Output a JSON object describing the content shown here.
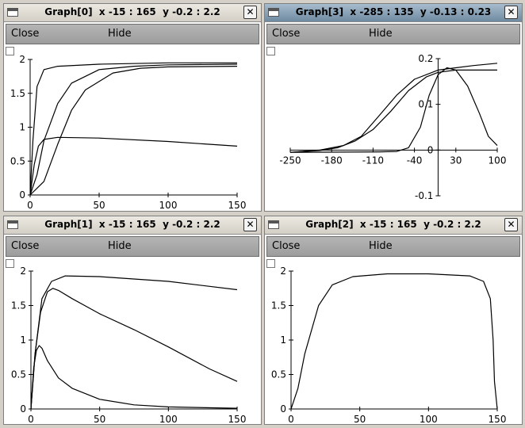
{
  "windows": [
    {
      "title": "Graph[0]  x -15 : 165  y -0.2 : 2.2",
      "active": false,
      "close_label": "Close",
      "hide_label": "Hide",
      "chart_data": {
        "type": "line",
        "xlim": [
          0,
          150
        ],
        "ylim": [
          0,
          2
        ],
        "x_ticks": [
          0,
          50,
          100,
          150
        ],
        "y_ticks": [
          0,
          0.5,
          1,
          1.5,
          2
        ],
        "series": [
          {
            "points": [
              [
                0,
                0
              ],
              [
                2,
                0.8
              ],
              [
                5,
                1.6
              ],
              [
                10,
                1.85
              ],
              [
                20,
                1.9
              ],
              [
                50,
                1.93
              ],
              [
                100,
                1.95
              ],
              [
                150,
                1.95
              ]
            ]
          },
          {
            "points": [
              [
                0,
                0
              ],
              [
                5,
                0.3
              ],
              [
                10,
                0.8
              ],
              [
                20,
                1.35
              ],
              [
                30,
                1.65
              ],
              [
                50,
                1.85
              ],
              [
                75,
                1.9
              ],
              [
                100,
                1.92
              ],
              [
                150,
                1.93
              ]
            ]
          },
          {
            "points": [
              [
                0,
                0
              ],
              [
                10,
                0.2
              ],
              [
                20,
                0.75
              ],
              [
                30,
                1.25
              ],
              [
                40,
                1.55
              ],
              [
                60,
                1.8
              ],
              [
                80,
                1.87
              ],
              [
                100,
                1.89
              ],
              [
                150,
                1.9
              ]
            ]
          },
          {
            "points": [
              [
                0,
                0
              ],
              [
                3,
                0.45
              ],
              [
                6,
                0.72
              ],
              [
                10,
                0.82
              ],
              [
                20,
                0.85
              ],
              [
                50,
                0.84
              ],
              [
                100,
                0.79
              ],
              [
                150,
                0.72
              ]
            ]
          }
        ]
      }
    },
    {
      "title": "Graph[3]  x -285 : 135  y -0.13 : 0.23",
      "active": true,
      "close_label": "Close",
      "hide_label": "Hide",
      "chart_data": {
        "type": "line",
        "xlim": [
          -250,
          100
        ],
        "ylim": [
          -0.1,
          0.2
        ],
        "x_ticks": [
          -250,
          -180,
          -110,
          -40,
          30,
          100
        ],
        "y_ticks": [
          -0.1,
          0,
          0.1,
          0.2
        ],
        "series": [
          {
            "points": [
              [
                -250,
                -0.005
              ],
              [
                -200,
                0
              ],
              [
                -160,
                0.01
              ],
              [
                -130,
                0.03
              ],
              [
                -100,
                0.075
              ],
              [
                -70,
                0.12
              ],
              [
                -40,
                0.155
              ],
              [
                -10,
                0.17
              ],
              [
                0,
                0.175
              ],
              [
                30,
                0.18
              ],
              [
                60,
                0.185
              ],
              [
                100,
                0.19
              ]
            ]
          },
          {
            "points": [
              [
                -250,
                -0.005
              ],
              [
                -200,
                -0.001
              ],
              [
                -170,
                0.005
              ],
              [
                -140,
                0.02
              ],
              [
                -110,
                0.045
              ],
              [
                -80,
                0.085
              ],
              [
                -50,
                0.13
              ],
              [
                -20,
                0.16
              ],
              [
                0,
                0.17
              ],
              [
                30,
                0.175
              ],
              [
                60,
                0.175
              ],
              [
                100,
                0.175
              ]
            ]
          },
          {
            "points": [
              [
                -250,
                -0.005
              ],
              [
                -100,
                -0.004
              ],
              [
                -70,
                -0.003
              ],
              [
                -50,
                0.005
              ],
              [
                -30,
                0.05
              ],
              [
                -15,
                0.12
              ],
              [
                0,
                0.165
              ],
              [
                15,
                0.18
              ],
              [
                30,
                0.175
              ],
              [
                50,
                0.14
              ],
              [
                70,
                0.08
              ],
              [
                85,
                0.03
              ],
              [
                100,
                0.01
              ]
            ]
          }
        ]
      }
    },
    {
      "title": "Graph[1]  x -15 : 165  y -0.2 : 2.2",
      "active": false,
      "close_label": "Close",
      "hide_label": "Hide",
      "chart_data": {
        "type": "line",
        "xlim": [
          0,
          150
        ],
        "ylim": [
          0,
          2
        ],
        "x_ticks": [
          0,
          50,
          100,
          150
        ],
        "y_ticks": [
          0,
          0.5,
          1,
          1.5,
          2
        ],
        "series": [
          {
            "points": [
              [
                0,
                0
              ],
              [
                3,
                0.8
              ],
              [
                8,
                1.6
              ],
              [
                15,
                1.85
              ],
              [
                25,
                1.93
              ],
              [
                50,
                1.92
              ],
              [
                100,
                1.85
              ],
              [
                150,
                1.73
              ]
            ]
          },
          {
            "points": [
              [
                0,
                0
              ],
              [
                3,
                0.8
              ],
              [
                7,
                1.4
              ],
              [
                12,
                1.7
              ],
              [
                16,
                1.75
              ],
              [
                20,
                1.72
              ],
              [
                30,
                1.6
              ],
              [
                50,
                1.38
              ],
              [
                75,
                1.15
              ],
              [
                100,
                0.9
              ],
              [
                130,
                0.58
              ],
              [
                150,
                0.4
              ]
            ]
          },
          {
            "points": [
              [
                0,
                0
              ],
              [
                2,
                0.6
              ],
              [
                4,
                0.85
              ],
              [
                6,
                0.92
              ],
              [
                8,
                0.88
              ],
              [
                12,
                0.7
              ],
              [
                20,
                0.45
              ],
              [
                30,
                0.3
              ],
              [
                50,
                0.14
              ],
              [
                75,
                0.06
              ],
              [
                100,
                0.03
              ],
              [
                150,
                0.01
              ]
            ]
          }
        ]
      }
    },
    {
      "title": "Graph[2]  x -15 : 165  y -0.2 : 2.2",
      "active": false,
      "close_label": "Close",
      "hide_label": "Hide",
      "chart_data": {
        "type": "line",
        "xlim": [
          0,
          150
        ],
        "ylim": [
          0,
          2
        ],
        "x_ticks": [
          0,
          50,
          100,
          150
        ],
        "y_ticks": [
          0,
          0.5,
          1,
          1.5,
          2
        ],
        "series": [
          {
            "points": [
              [
                0,
                0
              ],
              [
                5,
                0.3
              ],
              [
                10,
                0.8
              ],
              [
                20,
                1.5
              ],
              [
                30,
                1.8
              ],
              [
                45,
                1.92
              ],
              [
                70,
                1.96
              ],
              [
                100,
                1.96
              ],
              [
                130,
                1.93
              ],
              [
                140,
                1.85
              ],
              [
                145,
                1.6
              ],
              [
                147,
                1.0
              ],
              [
                148,
                0.4
              ],
              [
                150,
                0
              ]
            ]
          }
        ]
      }
    }
  ]
}
